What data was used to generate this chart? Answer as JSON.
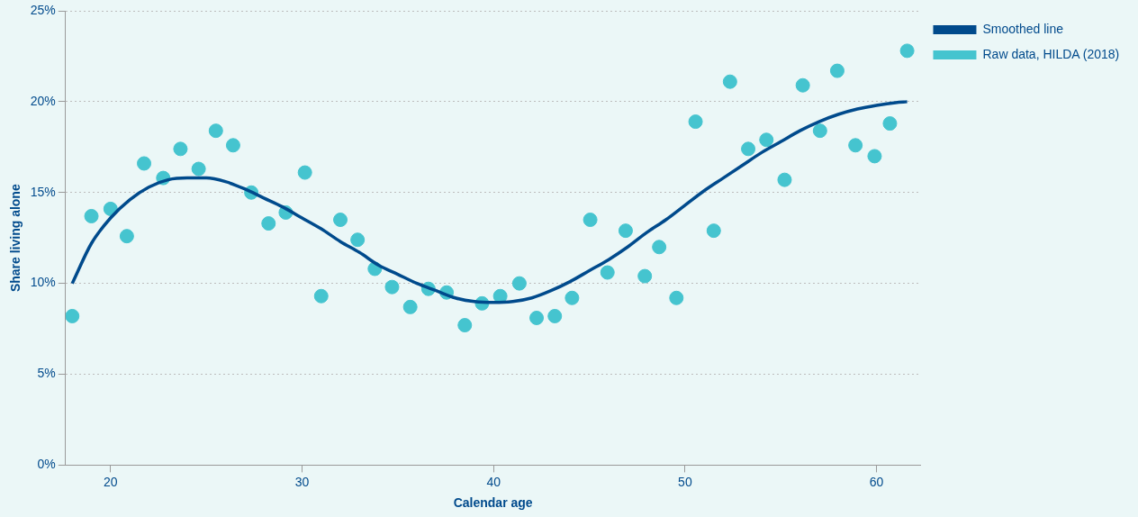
{
  "chart_data": {
    "type": "scatter",
    "xlabel": "Calendar age",
    "ylabel": "Share living alone",
    "xlim": [
      17.65,
      62.3
    ],
    "xticks": [
      20,
      30,
      40,
      50,
      60
    ],
    "ylim": [
      0,
      25
    ],
    "yticks": [
      {
        "value": 0,
        "label": "0%"
      },
      {
        "value": 5,
        "label": "5%"
      },
      {
        "value": 10,
        "label": "10%"
      },
      {
        "value": 15,
        "label": "15%"
      },
      {
        "value": 20,
        "label": "20%"
      },
      {
        "value": 25,
        "label": "25%"
      }
    ],
    "grid": "y",
    "legend": "right",
    "marker": "circle",
    "series": [
      {
        "name": "Smoothed line",
        "type": "line",
        "color": "#004a8c",
        "line_style": "solid",
        "marker": "none",
        "x": [
          18,
          19,
          20,
          21,
          22,
          23,
          24,
          25,
          26,
          27,
          28,
          29,
          30,
          31,
          32,
          33,
          34,
          35,
          36,
          37,
          38,
          39,
          40,
          41,
          42,
          43,
          44,
          45,
          46,
          47,
          48,
          49,
          50,
          51,
          52,
          53,
          54,
          55,
          56,
          57,
          58,
          59,
          60,
          61,
          61.6
        ],
        "values": [
          10.0,
          12.2,
          13.6,
          14.6,
          15.3,
          15.7,
          15.8,
          15.8,
          15.6,
          15.2,
          14.7,
          14.2,
          13.6,
          13.0,
          12.3,
          11.7,
          11.0,
          10.5,
          10.0,
          9.6,
          9.2,
          9.0,
          8.95,
          9.0,
          9.2,
          9.6,
          10.1,
          10.7,
          11.3,
          12.0,
          12.8,
          13.5,
          14.3,
          15.1,
          15.8,
          16.5,
          17.2,
          17.8,
          18.4,
          18.9,
          19.3,
          19.6,
          19.8,
          19.95,
          20.0
        ]
      },
      {
        "name": "Raw data, HILDA (2018)",
        "color": "#45c4cf",
        "x": [
          18.0,
          19.0,
          20.0,
          20.85,
          21.75,
          22.75,
          23.65,
          24.6,
          25.5,
          26.4,
          27.35,
          28.25,
          29.15,
          30.15,
          31.0,
          32.0,
          32.9,
          33.8,
          34.7,
          35.65,
          36.6,
          37.55,
          38.5,
          39.4,
          40.35,
          41.35,
          42.25,
          43.2,
          44.1,
          45.05,
          45.95,
          46.9,
          47.9,
          48.65,
          49.55,
          50.55,
          51.5,
          52.35,
          53.3,
          54.25,
          55.2,
          56.15,
          57.05,
          57.95,
          58.9,
          59.9,
          60.7,
          61.6
        ],
        "values": [
          8.2,
          13.7,
          14.1,
          12.6,
          16.6,
          15.8,
          17.4,
          16.3,
          18.4,
          17.6,
          15.0,
          13.3,
          13.9,
          16.1,
          9.3,
          13.5,
          12.4,
          10.8,
          9.8,
          8.7,
          9.7,
          9.5,
          7.7,
          8.9,
          9.3,
          10.0,
          8.1,
          8.2,
          9.2,
          13.5,
          10.6,
          12.9,
          10.4,
          12.0,
          9.2,
          18.9,
          12.9,
          21.1,
          17.4,
          17.9,
          15.7,
          20.9,
          18.4,
          21.7,
          17.6,
          17.0,
          18.8,
          22.8
        ]
      }
    ]
  }
}
